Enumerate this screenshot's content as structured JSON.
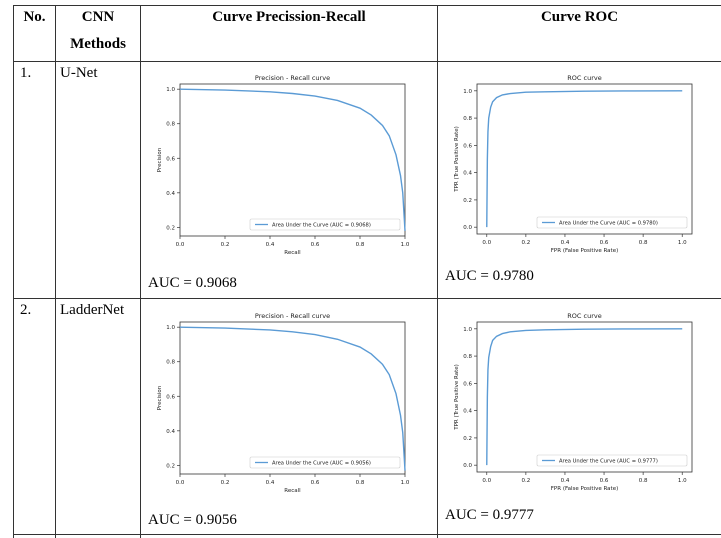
{
  "table": {
    "headers": {
      "no": "No.",
      "methods_line1": "CNN",
      "methods_line2": "Methods",
      "pr": "Curve Precission-Recall",
      "roc": "Curve ROC"
    },
    "rows": [
      {
        "no": "1.",
        "method": "U-Net",
        "pr_auc_text": "AUC = 0.9068",
        "roc_auc_text": "AUC = 0.9780"
      },
      {
        "no": "2.",
        "method": "LadderNet",
        "pr_auc_text": "AUC = 0.9056",
        "roc_auc_text": "AUC = 0.9777"
      }
    ]
  },
  "colors": {
    "curve": "#5b9bd5",
    "axis": "#333333",
    "border": "#333333"
  },
  "chart_data": [
    {
      "type": "line",
      "title": "Precision - Recall curve",
      "xlabel": "Recall",
      "ylabel": "Precision",
      "xlim": [
        0.0,
        1.0
      ],
      "ylim": [
        0.15,
        1.03
      ],
      "xticks": [
        "0.0",
        "0.2",
        "0.4",
        "0.6",
        "0.8",
        "1.0"
      ],
      "yticks": [
        "0.2",
        "0.4",
        "0.6",
        "0.8",
        "1.0"
      ],
      "legend_text": "Area Under the Curve (AUC = 0.9068)",
      "legend_position": "lower-right",
      "series": [
        {
          "x": [
            0.0,
            0.2,
            0.4,
            0.5,
            0.6,
            0.7,
            0.8,
            0.85,
            0.9,
            0.93,
            0.96,
            0.98,
            0.99,
            1.0
          ],
          "y": [
            1.0,
            0.995,
            0.985,
            0.975,
            0.96,
            0.935,
            0.89,
            0.85,
            0.79,
            0.73,
            0.62,
            0.5,
            0.4,
            0.18
          ]
        }
      ]
    },
    {
      "type": "line",
      "title": "ROC curve",
      "xlabel": "FPR (False Positive Rate)",
      "ylabel": "TPR (True Positive Rate)",
      "xlim": [
        -0.05,
        1.05
      ],
      "ylim": [
        -0.05,
        1.05
      ],
      "xticks": [
        "0.0",
        "0.2",
        "0.4",
        "0.6",
        "0.8",
        "1.0"
      ],
      "yticks": [
        "0.0",
        "0.2",
        "0.4",
        "0.6",
        "0.8",
        "1.0"
      ],
      "legend_text": "Area Under the Curve (AUC = 0.9780)",
      "legend_position": "lower-right",
      "series": [
        {
          "x": [
            0.0,
            0.003,
            0.006,
            0.01,
            0.02,
            0.03,
            0.05,
            0.08,
            0.12,
            0.2,
            0.3,
            0.5,
            0.7,
            1.0
          ],
          "y": [
            0.0,
            0.5,
            0.7,
            0.8,
            0.88,
            0.92,
            0.95,
            0.97,
            0.98,
            0.99,
            0.993,
            0.997,
            0.999,
            1.0
          ]
        }
      ]
    },
    {
      "type": "line",
      "title": "Precision - Recall curve",
      "xlabel": "Recall",
      "ylabel": "Precision",
      "xlim": [
        0.0,
        1.0
      ],
      "ylim": [
        0.15,
        1.03
      ],
      "xticks": [
        "0.0",
        "0.2",
        "0.4",
        "0.6",
        "0.8",
        "1.0"
      ],
      "yticks": [
        "0.2",
        "0.4",
        "0.6",
        "0.8",
        "1.0"
      ],
      "legend_text": "Area Under the Curve (AUC = 0.9056)",
      "legend_position": "lower-right",
      "series": [
        {
          "x": [
            0.0,
            0.2,
            0.4,
            0.5,
            0.6,
            0.7,
            0.8,
            0.85,
            0.9,
            0.93,
            0.96,
            0.98,
            0.99,
            1.0
          ],
          "y": [
            1.0,
            0.995,
            0.984,
            0.973,
            0.957,
            0.93,
            0.885,
            0.845,
            0.785,
            0.725,
            0.615,
            0.49,
            0.39,
            0.17
          ]
        }
      ]
    },
    {
      "type": "line",
      "title": "ROC curve",
      "xlabel": "FPR (False Positive Rate)",
      "ylabel": "TPR (True Positive Rate)",
      "xlim": [
        -0.05,
        1.05
      ],
      "ylim": [
        -0.05,
        1.05
      ],
      "xticks": [
        "0.0",
        "0.2",
        "0.4",
        "0.6",
        "0.8",
        "1.0"
      ],
      "yticks": [
        "0.0",
        "0.2",
        "0.4",
        "0.6",
        "0.8",
        "1.0"
      ],
      "legend_text": "Area Under the Curve (AUC = 0.9777)",
      "legend_position": "lower-right",
      "series": [
        {
          "x": [
            0.0,
            0.003,
            0.006,
            0.01,
            0.02,
            0.03,
            0.05,
            0.08,
            0.12,
            0.2,
            0.3,
            0.5,
            0.7,
            1.0
          ],
          "y": [
            0.0,
            0.5,
            0.7,
            0.79,
            0.87,
            0.915,
            0.945,
            0.965,
            0.978,
            0.988,
            0.993,
            0.997,
            0.999,
            1.0
          ]
        }
      ]
    }
  ]
}
